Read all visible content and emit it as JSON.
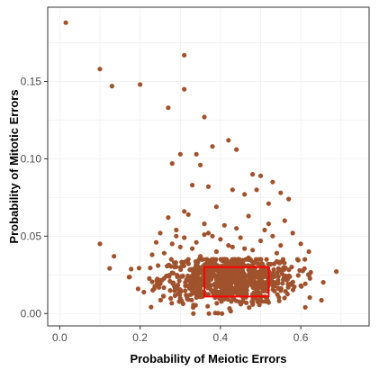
{
  "chart_data": {
    "type": "scatter",
    "title": "",
    "xlabel": "Probability of Meiotic Errors",
    "ylabel": "Probability of Mitotic Errors",
    "xlim": [
      -0.03,
      0.77
    ],
    "ylim": [
      -0.008,
      0.198
    ],
    "x_ticks": [
      0.0,
      0.2,
      0.4,
      0.6
    ],
    "x_tick_labels": [
      "0.0",
      "0.2",
      "0.4",
      "0.6"
    ],
    "y_ticks": [
      0.0,
      0.05,
      0.1,
      0.15
    ],
    "y_tick_labels": [
      "0.00",
      "0.05",
      "0.10",
      "0.15"
    ],
    "grid": true,
    "legend": "none",
    "colors": {
      "point": "#a0522d",
      "highlight": "#ff0000",
      "grid": "#ebebeb",
      "panel_border": "#333333"
    },
    "highlight_region": {
      "x": [
        0.36,
        0.52
      ],
      "y": [
        0.011,
        0.03
      ]
    },
    "series": [
      {
        "x": [
          0.015,
          0.1,
          0.13,
          0.2,
          0.31,
          0.31,
          0.27,
          0.36,
          0.42,
          0.38,
          0.44,
          0.34,
          0.3,
          0.28,
          0.35,
          0.48,
          0.5,
          0.53,
          0.55,
          0.49,
          0.33,
          0.37,
          0.43,
          0.46,
          0.57,
          0.39,
          0.1,
          0.135,
          0.31,
          0.47,
          0.52,
          0.27,
          0.36,
          0.41,
          0.44,
          0.51,
          0.58,
          0.32,
          0.29,
          0.56,
          0.52,
          0.34,
          0.4,
          0.45,
          0.38,
          0.3,
          0.25,
          0.6,
          0.62,
          0.5,
          0.36,
          0.42,
          0.48,
          0.29,
          0.33,
          0.26,
          0.55,
          0.23,
          0.47,
          0.39,
          0.43,
          0.31,
          0.54,
          0.35,
          0.46,
          0.28,
          0.61,
          0.37,
          0.24,
          0.53
        ],
        "y": [
          0.188,
          0.158,
          0.147,
          0.148,
          0.167,
          0.145,
          0.133,
          0.127,
          0.112,
          0.108,
          0.106,
          0.103,
          0.103,
          0.097,
          0.096,
          0.09,
          0.089,
          0.085,
          0.078,
          0.08,
          0.083,
          0.082,
          0.08,
          0.077,
          0.074,
          0.069,
          0.045,
          0.037,
          0.066,
          0.063,
          0.058,
          0.062,
          0.058,
          0.057,
          0.055,
          0.054,
          0.052,
          0.064,
          0.05,
          0.06,
          0.071,
          0.046,
          0.048,
          0.049,
          0.05,
          0.043,
          0.052,
          0.045,
          0.04,
          0.047,
          0.051,
          0.044,
          0.041,
          0.054,
          0.042,
          0.039,
          0.044,
          0.038,
          0.036,
          0.04,
          0.043,
          0.049,
          0.039,
          0.037,
          0.042,
          0.045,
          0.035,
          0.052,
          0.046,
          0.05
        ]
      }
    ],
    "dense_cloud": {
      "count": 820,
      "x_center": 0.42,
      "x_sd": 0.085,
      "x_range": [
        0.09,
        0.73
      ],
      "y_peak": 0.022,
      "y_range": [
        0.0,
        0.035
      ]
    }
  }
}
